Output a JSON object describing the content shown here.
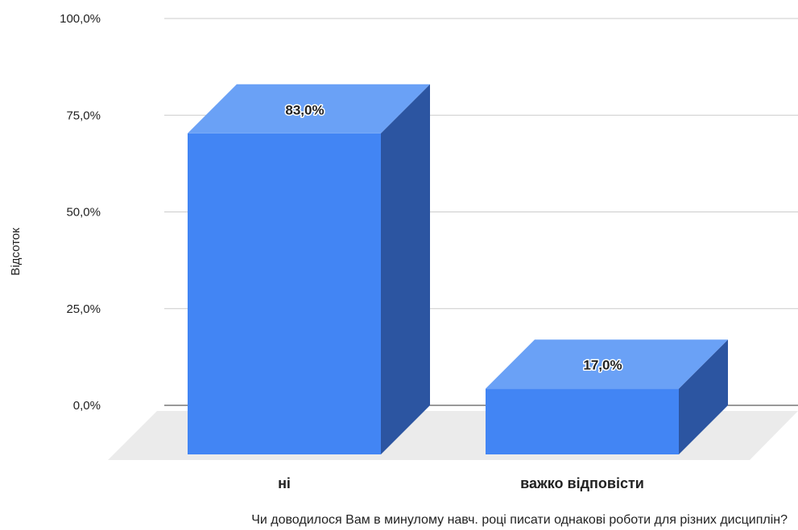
{
  "chart_data": {
    "type": "bar",
    "style": "3d",
    "categories": [
      "ні",
      "важко відповісти"
    ],
    "values": [
      83.0,
      17.0
    ],
    "data_labels": [
      "83,0%",
      "17,0%"
    ],
    "ylabel": "Відсоток",
    "xlabel": "Чи доводилося Вам в минулому навч. році  писати однакові роботи для різних дисциплін?",
    "ylim": [
      0,
      100
    ],
    "y_ticks": [
      0,
      25,
      50,
      75,
      100
    ],
    "y_tick_labels": [
      "0,0%",
      "25,0%",
      "50,0%",
      "75,0%",
      "100,0%"
    ],
    "grid": true,
    "colors": {
      "bar_front": "#4285f4",
      "bar_top": "#6aa1f6",
      "bar_side": "#2c55a1",
      "floor": "#ebebeb",
      "gridline": "#cccccc",
      "baseline": "#333333"
    }
  }
}
